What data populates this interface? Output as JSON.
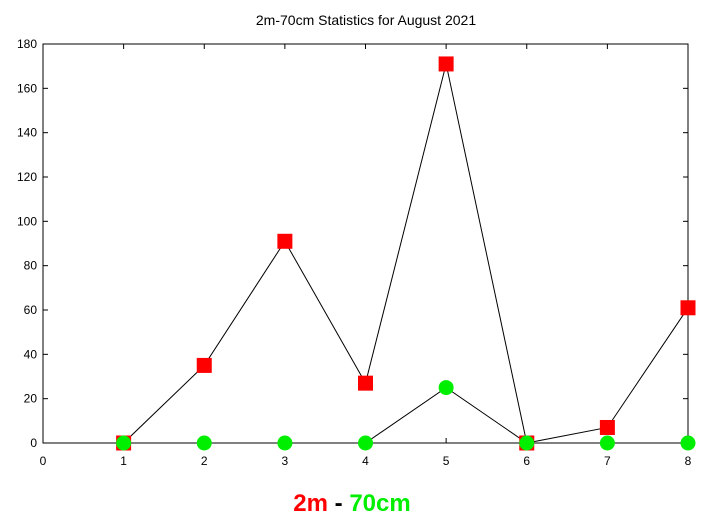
{
  "chart_data": {
    "type": "line",
    "title": "2m-70cm Statistics for August 2021",
    "x": [
      1,
      2,
      3,
      4,
      5,
      6,
      7,
      8
    ],
    "xlim": [
      0,
      8
    ],
    "ylim": [
      0,
      180
    ],
    "xticks": [
      0,
      1,
      2,
      3,
      4,
      5,
      6,
      7,
      8
    ],
    "yticks": [
      0,
      20,
      40,
      60,
      80,
      100,
      120,
      140,
      160,
      180
    ],
    "grid": false,
    "series": [
      {
        "name": "2m",
        "marker": "square",
        "color": "#ff0000",
        "values": [
          0,
          35,
          91,
          27,
          171,
          0,
          7,
          61
        ]
      },
      {
        "name": "70cm",
        "marker": "circle",
        "color": "#00ee00",
        "values": [
          0,
          0,
          0,
          0,
          25,
          0,
          0,
          0
        ]
      }
    ],
    "legend": {
      "position": "bottom-center",
      "separator": "-"
    }
  }
}
